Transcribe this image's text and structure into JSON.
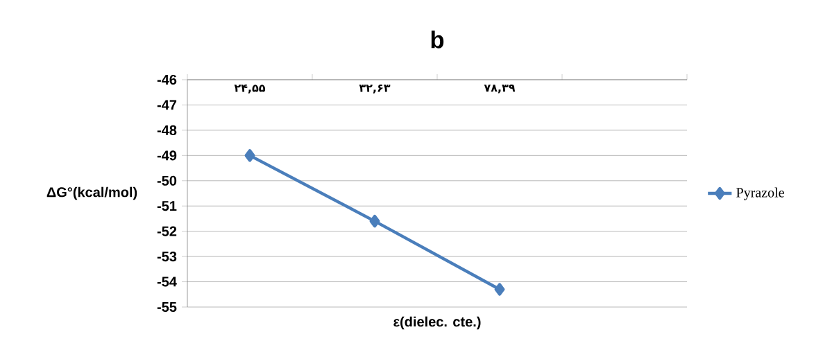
{
  "chart_data": {
    "type": "line",
    "title": "b",
    "xlabel": "ε(dielec. cte.)",
    "ylabel": "ΔG°(kcal/mol)",
    "categories": [
      "۲۴,۵۵",
      "۳۲,۶۳",
      "۷۸,۳۹",
      null
    ],
    "series": [
      {
        "name": "Pyrazole",
        "color": "#4a7ebb",
        "values": [
          -49.0,
          -51.6,
          -54.3,
          null
        ]
      }
    ],
    "ylim": [
      -55,
      -46
    ],
    "yticks": [
      -55,
      -54,
      -53,
      -52,
      -51,
      -50,
      -49,
      -48,
      -47,
      -46
    ],
    "grid": "y",
    "legend": "right",
    "marker": "diamond",
    "line_style": "solid"
  }
}
